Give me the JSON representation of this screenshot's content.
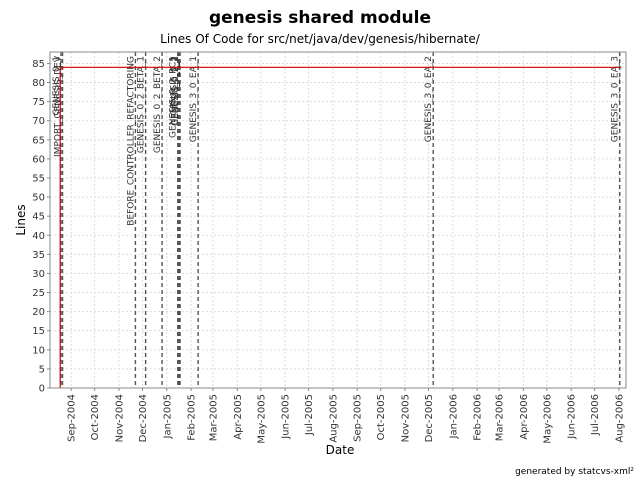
{
  "chart_data": {
    "type": "line",
    "title": "genesis shared module",
    "subtitle": "Lines Of Code for src/net/java/dev/genesis/hibernate/",
    "xlabel": "Date",
    "ylabel": "Lines",
    "ylim": [
      0,
      88
    ],
    "xlim": [
      "2004-08-05",
      "2006-08-10"
    ],
    "y_ticks": [
      0,
      5,
      10,
      15,
      20,
      25,
      30,
      35,
      40,
      45,
      50,
      55,
      60,
      65,
      70,
      75,
      80,
      85
    ],
    "x_ticks": [
      {
        "label": "Sep-2004",
        "date": "2004-09-01"
      },
      {
        "label": "Oct-2004",
        "date": "2004-10-01"
      },
      {
        "label": "Nov-2004",
        "date": "2004-11-01"
      },
      {
        "label": "Dec-2004",
        "date": "2004-12-01"
      },
      {
        "label": "Jan-2005",
        "date": "2005-01-01"
      },
      {
        "label": "Feb-2005",
        "date": "2005-02-01"
      },
      {
        "label": "Mar-2005",
        "date": "2005-03-01"
      },
      {
        "label": "Apr-2005",
        "date": "2005-04-01"
      },
      {
        "label": "May-2005",
        "date": "2005-05-01"
      },
      {
        "label": "Jun-2005",
        "date": "2005-06-01"
      },
      {
        "label": "Jul-2005",
        "date": "2005-07-01"
      },
      {
        "label": "Aug-2005",
        "date": "2005-08-01"
      },
      {
        "label": "Sep-2005",
        "date": "2005-09-01"
      },
      {
        "label": "Oct-2005",
        "date": "2005-10-01"
      },
      {
        "label": "Nov-2005",
        "date": "2005-11-01"
      },
      {
        "label": "Dec-2005",
        "date": "2005-12-01"
      },
      {
        "label": "Jan-2006",
        "date": "2006-01-01"
      },
      {
        "label": "Feb-2006",
        "date": "2006-02-01"
      },
      {
        "label": "Mar-2006",
        "date": "2006-03-01"
      },
      {
        "label": "Apr-2006",
        "date": "2006-04-01"
      },
      {
        "label": "May-2006",
        "date": "2006-05-01"
      },
      {
        "label": "Jun-2006",
        "date": "2006-06-01"
      },
      {
        "label": "Jul-2006",
        "date": "2006-07-01"
      },
      {
        "label": "Aug-2006",
        "date": "2006-08-01"
      }
    ],
    "grid": true,
    "series": [
      {
        "color": "#cc0000",
        "points": [
          {
            "x": "2004-08-18",
            "y": 0
          },
          {
            "x": "2004-08-18",
            "y": 84
          },
          {
            "x": "2006-08-04",
            "y": 84
          }
        ]
      }
    ],
    "markers": [
      {
        "label": "GENESIS_0_1",
        "date": "2004-08-19"
      },
      {
        "label": "IMPORT_GENESIS_DEV",
        "date": "2004-08-21"
      },
      {
        "label": "BEFORE_CONTROLLER_REFACTORING",
        "date": "2004-11-22"
      },
      {
        "label": "GENESIS_0_2_BETA_1",
        "date": "2004-12-05"
      },
      {
        "label": "GENESIS_0_2_BETA_2",
        "date": "2004-12-26"
      },
      {
        "label": "GENESIS_0_2_RC1",
        "date": "2005-01-15"
      },
      {
        "label": "GENESIS_0_2",
        "date": "2005-01-16"
      },
      {
        "label": "GENESIS_0_2_1",
        "date": "2005-01-17"
      },
      {
        "label": "GENESIS_0_2_2",
        "date": "2005-01-18"
      },
      {
        "label": "GENESIS_3_0_EA_1",
        "date": "2005-02-10"
      },
      {
        "label": "GENESIS_3_0_EA_2",
        "date": "2005-12-07"
      },
      {
        "label": "GENESIS_3_0_EA_3",
        "date": "2006-08-02"
      }
    ],
    "marker_color": "#555555",
    "grid_color": "#dddddd"
  },
  "footer": "generated by statcvs-xml²"
}
